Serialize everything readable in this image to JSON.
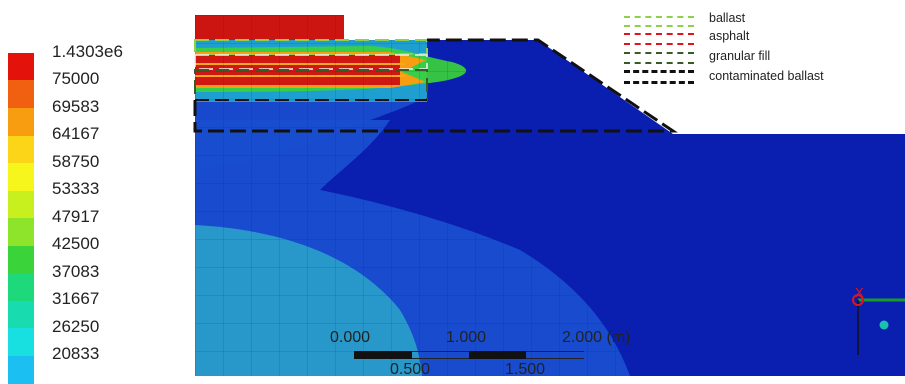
{
  "legend": {
    "items": [
      {
        "label": "1.4303e6",
        "color": "#e3120b"
      },
      {
        "label": "75000",
        "color": "#f06010"
      },
      {
        "label": "69583",
        "color": "#f89d10"
      },
      {
        "label": "64167",
        "color": "#fcd518"
      },
      {
        "label": "58750",
        "color": "#f6f51c"
      },
      {
        "label": "53333",
        "color": "#c8ef1e"
      },
      {
        "label": "47917",
        "color": "#8ee42a"
      },
      {
        "label": "42500",
        "color": "#3ad43a"
      },
      {
        "label": "37083",
        "color": "#1ed97c"
      },
      {
        "label": "31667",
        "color": "#18dcb0"
      },
      {
        "label": "26250",
        "color": "#18e0e0"
      },
      {
        "label": "20833",
        "color": "#1bbff2"
      }
    ]
  },
  "key": {
    "items": [
      {
        "label": "ballast",
        "color": "#8cd04c"
      },
      {
        "label": "asphalt",
        "color": "#e0141c"
      },
      {
        "label": "granular fill",
        "color": "#3a5a26"
      },
      {
        "label": "contaminated ballast",
        "color": "#111111"
      }
    ]
  },
  "scale_bar": {
    "top_labels": [
      "0.000",
      "1.000",
      "2.000 (m)"
    ],
    "bottom_labels": [
      "0.500",
      "1.500"
    ]
  },
  "axes": {
    "x_label": "X"
  },
  "colors": {
    "mesh_blue": "#0a1fb0",
    "mid_blue": "#1a4ed0",
    "light_blue": "#2a80d8",
    "teal": "#2aa6c8"
  }
}
